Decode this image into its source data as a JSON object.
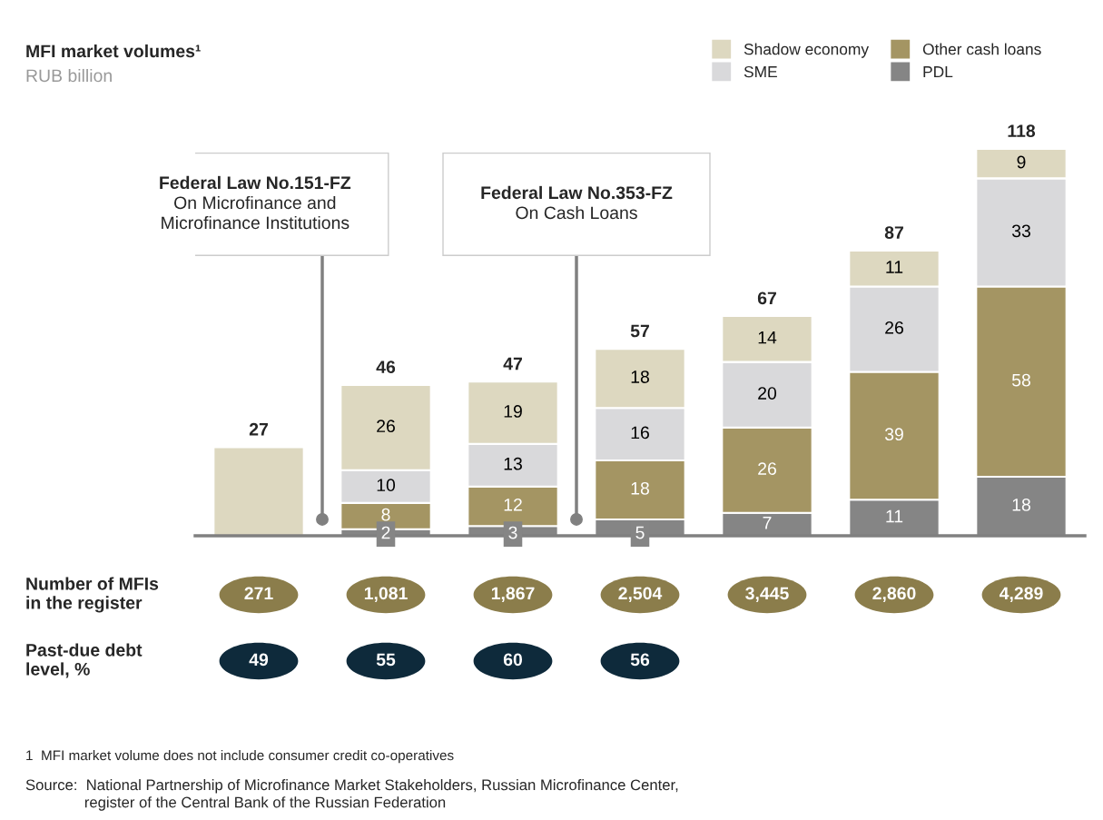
{
  "chart_data": [
    {
      "type": "bar",
      "title": "MFI market volumes¹",
      "subtitle": "RUB billion",
      "stacked": true,
      "categories": [
        null,
        null,
        null,
        null,
        null,
        null,
        null
      ],
      "series": [
        {
          "name": "PDL",
          "color": "#858585",
          "values": [
            null,
            2,
            3,
            5,
            7,
            11,
            18
          ],
          "value_labels": [
            null,
            "2",
            "3",
            "5",
            "7",
            "11",
            "18"
          ]
        },
        {
          "name": "Other cash loans",
          "color": "#a49563",
          "values": [
            null,
            8,
            12,
            18,
            26,
            39,
            58
          ],
          "value_labels": [
            null,
            "8",
            "12",
            "18",
            "26",
            "39",
            "58"
          ]
        },
        {
          "name": "SME",
          "color": "#d9d9db",
          "values": [
            null,
            10,
            13,
            16,
            20,
            26,
            33
          ],
          "value_labels": [
            null,
            "10",
            "13",
            "16",
            "20",
            "26",
            "33"
          ]
        },
        {
          "name": "Shadow economy",
          "color": "#ddd8c0",
          "values": [
            27,
            26,
            19,
            18,
            14,
            11,
            9
          ],
          "value_labels": [
            null,
            "26",
            "19",
            "18",
            "14",
            "11",
            "9"
          ]
        }
      ],
      "totals": [
        "27",
        "46",
        "47",
        "57",
        "67",
        "87",
        "118"
      ],
      "legend": "top right",
      "annotations": [
        "Federal Law No.151-FZ\nOn Microfinance and\nMicrofinance Institutions",
        "Federal Law No.353-FZ\nOn Cash Loans",
        "1  MFI market volume does not include consumer credit co-operatives",
        "Source:  National Partnership of Microfinance Market Stakeholders, Russian Microfinance Center,\n              register of the Central Bank of the Russian Federation"
      ]
    },
    {
      "type": "other",
      "title": "Number of MFIs\nin the register",
      "color": "#8b7d4b",
      "annotations": [
        "271",
        "1,081",
        "1,867",
        "2,504",
        "3,445",
        "2,860",
        "4,289"
      ]
    },
    {
      "type": "other",
      "title": "Past-due debt\nlevel, %",
      "color": "#0e2a3b",
      "annotations": [
        "49",
        "55",
        "60",
        "56"
      ]
    }
  ]
}
